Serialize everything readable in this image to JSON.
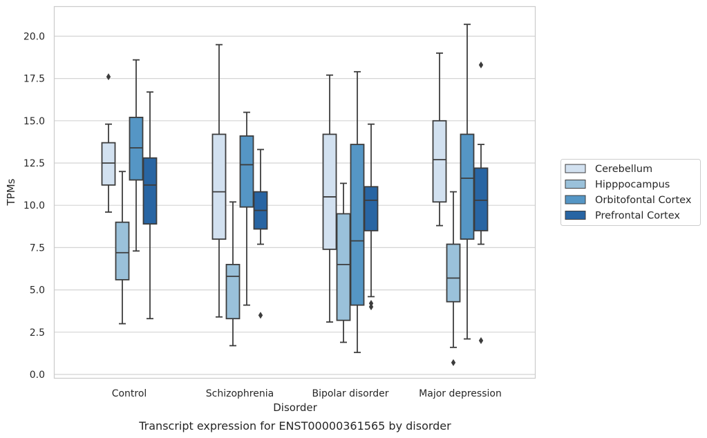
{
  "caption": "Transcript expression for ENST00000361565 by disorder",
  "chart_data": {
    "type": "box",
    "xlabel": "Disorder",
    "ylabel": "TPMs",
    "ylim": [
      -0.2,
      21.7
    ],
    "yticks": [
      "0.0",
      "2.5",
      "5.0",
      "7.5",
      "10.0",
      "12.5",
      "15.0",
      "17.5",
      "20.0"
    ],
    "grid": "horizontal",
    "legend_position": "right",
    "categories": [
      "Control",
      "Schizophrenia",
      "Bipolar disorder",
      "Major depression"
    ],
    "series": [
      {
        "name": "Cerebellum",
        "color": "#d2e1f0",
        "boxes": [
          {
            "whislo": 9.6,
            "q1": 11.2,
            "med": 12.5,
            "q3": 13.7,
            "whishi": 14.8,
            "fliers": [
              17.6
            ]
          },
          {
            "whislo": 3.4,
            "q1": 8.0,
            "med": 10.8,
            "q3": 14.2,
            "whishi": 19.5,
            "fliers": []
          },
          {
            "whislo": 3.1,
            "q1": 7.4,
            "med": 10.5,
            "q3": 14.2,
            "whishi": 17.7,
            "fliers": []
          },
          {
            "whislo": 8.8,
            "q1": 10.2,
            "med": 12.7,
            "q3": 15.0,
            "whishi": 19.0,
            "fliers": []
          }
        ]
      },
      {
        "name": "Hipppocampus",
        "color": "#9ac1da",
        "boxes": [
          {
            "whislo": 3.0,
            "q1": 5.6,
            "med": 7.2,
            "q3": 9.0,
            "whishi": 12.0,
            "fliers": []
          },
          {
            "whislo": 1.7,
            "q1": 3.3,
            "med": 5.8,
            "q3": 6.5,
            "whishi": 10.2,
            "fliers": []
          },
          {
            "whislo": 1.9,
            "q1": 3.2,
            "med": 6.5,
            "q3": 9.5,
            "whishi": 11.3,
            "fliers": []
          },
          {
            "whislo": 1.6,
            "q1": 4.3,
            "med": 5.7,
            "q3": 7.7,
            "whishi": 10.8,
            "fliers": [
              0.7
            ]
          }
        ]
      },
      {
        "name": "Orbitofontal Cortex",
        "color": "#5596c5",
        "boxes": [
          {
            "whislo": 7.3,
            "q1": 11.5,
            "med": 13.4,
            "q3": 15.2,
            "whishi": 18.6,
            "fliers": []
          },
          {
            "whislo": 4.1,
            "q1": 9.9,
            "med": 12.4,
            "q3": 14.1,
            "whishi": 15.5,
            "fliers": []
          },
          {
            "whislo": 1.3,
            "q1": 4.1,
            "med": 7.9,
            "q3": 13.6,
            "whishi": 17.9,
            "fliers": []
          },
          {
            "whislo": 2.1,
            "q1": 8.0,
            "med": 11.6,
            "q3": 14.2,
            "whishi": 20.7,
            "fliers": []
          }
        ]
      },
      {
        "name": "Prefrontal Cortex",
        "color": "#2865a3",
        "boxes": [
          {
            "whislo": 3.3,
            "q1": 8.9,
            "med": 11.2,
            "q3": 12.8,
            "whishi": 16.7,
            "fliers": []
          },
          {
            "whislo": 7.7,
            "q1": 8.6,
            "med": 9.7,
            "q3": 10.8,
            "whishi": 13.3,
            "fliers": [
              3.5
            ]
          },
          {
            "whislo": 4.6,
            "q1": 8.5,
            "med": 10.3,
            "q3": 11.1,
            "whishi": 14.8,
            "fliers": [
              4.2,
              4.0
            ]
          },
          {
            "whislo": 7.7,
            "q1": 8.5,
            "med": 10.3,
            "q3": 12.2,
            "whishi": 13.6,
            "fliers": [
              18.3,
              2.0
            ]
          }
        ]
      }
    ]
  }
}
